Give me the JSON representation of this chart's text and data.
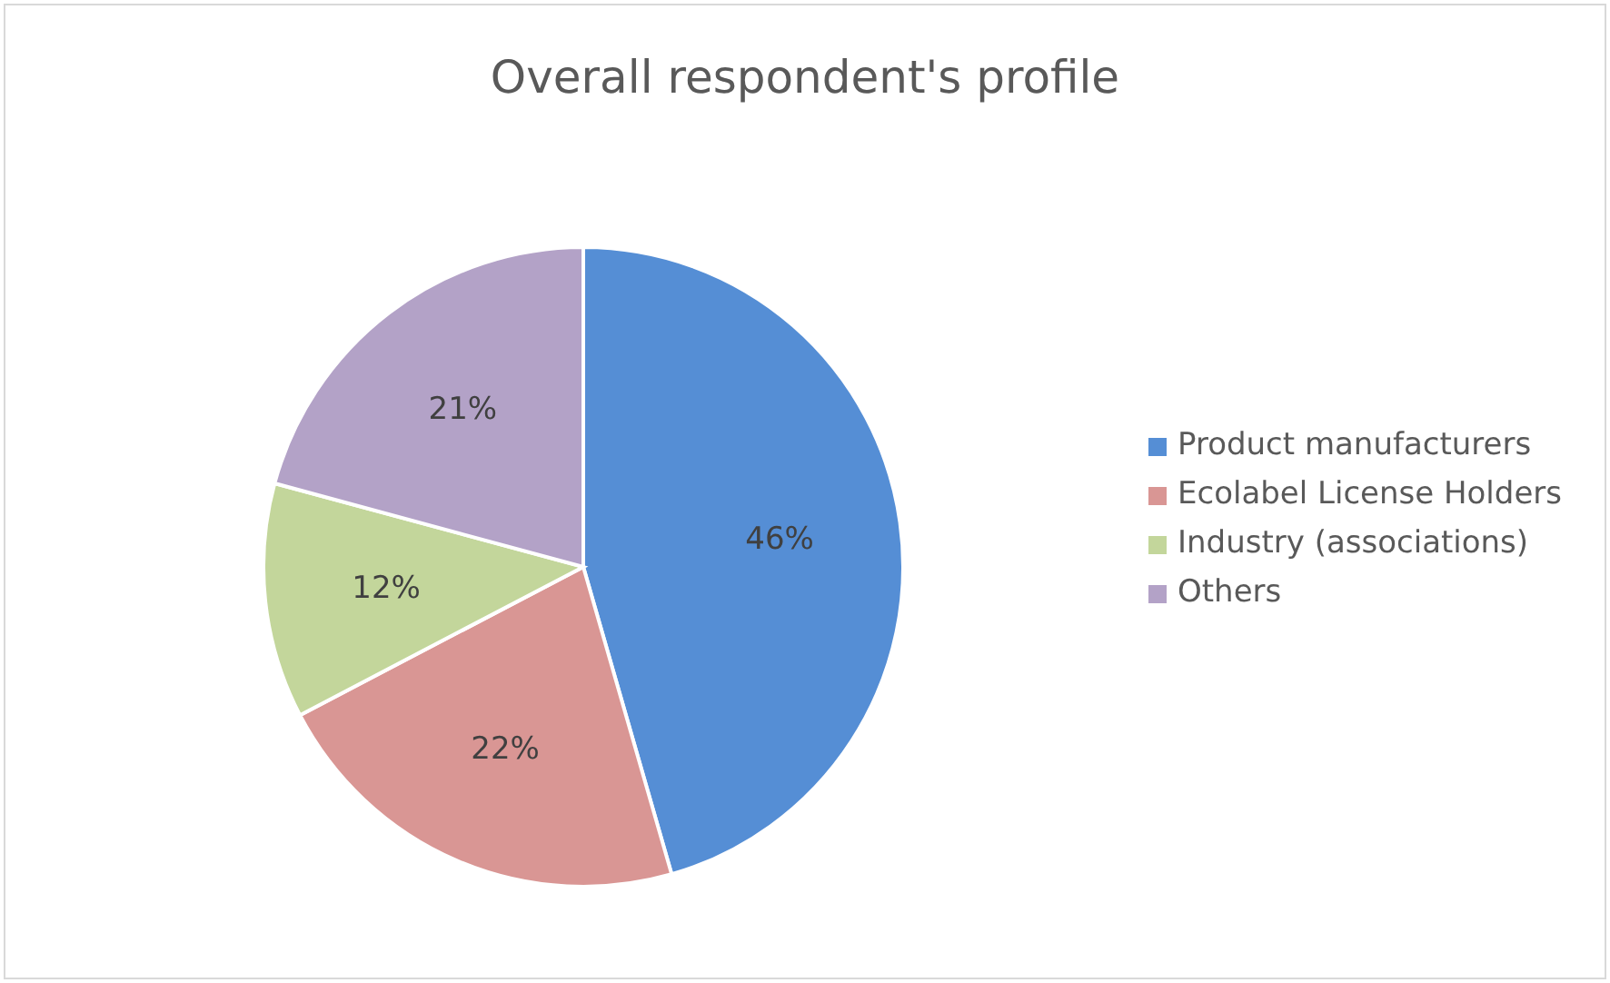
{
  "chart_data": {
    "type": "pie",
    "title": "Overall respondent's profile",
    "categories": [
      "Product manufacturers",
      "Ecolabel License Holders",
      "Industry (associations)",
      "Others"
    ],
    "values": [
      46,
      22,
      12,
      21
    ],
    "colors": [
      "#558ed5",
      "#d99694",
      "#c3d69b",
      "#b3a2c7"
    ],
    "value_labels": [
      "46%",
      "22%",
      "12%",
      "21%"
    ],
    "legend": "right"
  }
}
